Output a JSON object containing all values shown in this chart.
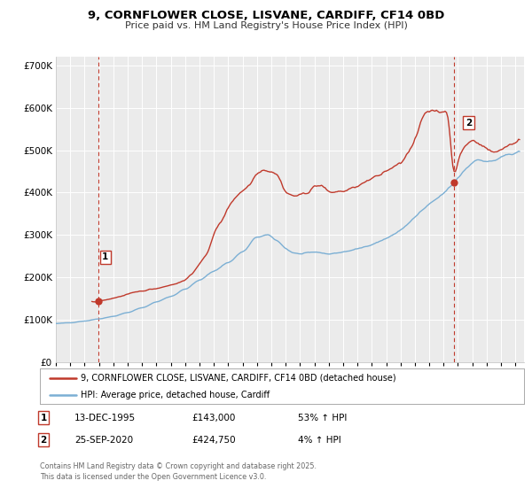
{
  "title": "9, CORNFLOWER CLOSE, LISVANE, CARDIFF, CF14 0BD",
  "subtitle": "Price paid vs. HM Land Registry's House Price Index (HPI)",
  "title_fontsize": 9.5,
  "subtitle_fontsize": 8.0,
  "background_color": "#ffffff",
  "plot_bg_color": "#ebebeb",
  "grid_color": "#ffffff",
  "hpi_color": "#7bafd4",
  "price_color": "#c0392b",
  "ylim": [
    0,
    720000
  ],
  "yticks": [
    0,
    100000,
    200000,
    300000,
    400000,
    500000,
    600000,
    700000
  ],
  "xlim_start": 1993.0,
  "xlim_end": 2025.6,
  "xticks": [
    1993,
    1994,
    1995,
    1996,
    1997,
    1998,
    1999,
    2000,
    2001,
    2002,
    2003,
    2004,
    2005,
    2006,
    2007,
    2008,
    2009,
    2010,
    2011,
    2012,
    2013,
    2014,
    2015,
    2016,
    2017,
    2018,
    2019,
    2020,
    2021,
    2022,
    2023,
    2024,
    2025
  ],
  "marker1_x": 1995.95,
  "marker1_y": 143000,
  "marker2_x": 2020.73,
  "marker2_y": 424750,
  "vline1_x": 1995.95,
  "vline2_x": 2020.73,
  "legend_label_price": "9, CORNFLOWER CLOSE, LISVANE, CARDIFF, CF14 0BD (detached house)",
  "legend_label_hpi": "HPI: Average price, detached house, Cardiff",
  "note1_num": "1",
  "note1_date": "13-DEC-1995",
  "note1_price": "£143,000",
  "note1_hpi": "53% ↑ HPI",
  "note2_num": "2",
  "note2_date": "25-SEP-2020",
  "note2_price": "£424,750",
  "note2_hpi": "4% ↑ HPI",
  "footer": "Contains HM Land Registry data © Crown copyright and database right 2025.\nThis data is licensed under the Open Government Licence v3.0."
}
